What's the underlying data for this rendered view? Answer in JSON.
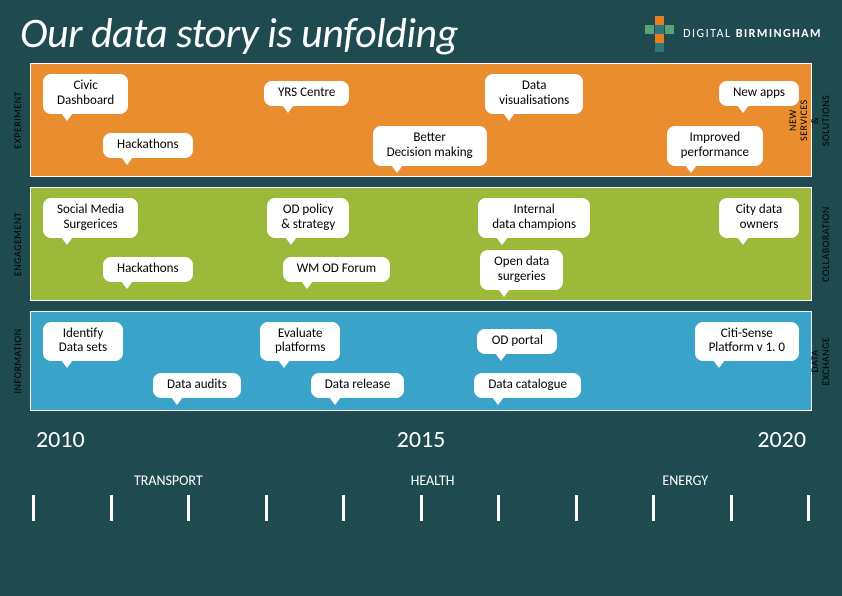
{
  "header": {
    "title": "Our data story is unfolding",
    "logo": {
      "text_light": "DIGITAL",
      "text_bold": "BIRMINGHAM",
      "square_colors": [
        "#e87d1e",
        "#5aa37a",
        "#2b7a78",
        "#5aa37a",
        "#e87d1e",
        "#2b7a78"
      ]
    }
  },
  "bands": [
    {
      "id": "experiment",
      "bg": "#e98d2e",
      "text_color": "#000",
      "left_label": "EXPERIMENT",
      "right_label": "NEW SERVICES & SOLUTIONS",
      "rows": [
        {
          "offset": 0,
          "items": [
            {
              "label": "Civic\nDashboard"
            },
            {
              "label": "YRS Centre"
            },
            {
              "label": "Data\nvisualisations"
            },
            {
              "label": "New apps"
            }
          ]
        },
        {
          "offset": 1,
          "items": [
            {
              "label": "Hackathons"
            },
            {
              "label": "Better\nDecision making"
            },
            {
              "label": "Improved\nperformance"
            }
          ]
        }
      ]
    },
    {
      "id": "engagement",
      "bg": "#9cb93a",
      "text_color": "#000",
      "left_label": "ENGAGEMENT",
      "right_label": "COLLABORATION",
      "rows": [
        {
          "offset": 0,
          "items": [
            {
              "label": "Social Media\nSurgerices"
            },
            {
              "label": "OD policy\n& strategy"
            },
            {
              "label": "Internal\ndata champions"
            },
            {
              "label": "City data\nowners"
            }
          ]
        },
        {
          "offset": 1,
          "items": [
            {
              "label": "Hackathons"
            },
            {
              "label": "WM OD Forum"
            },
            {
              "label": "Open data\nsurgeries"
            }
          ]
        }
      ]
    },
    {
      "id": "information",
      "bg": "#3aa3c9",
      "text_color": "#000",
      "left_label": "INFORMATION",
      "right_label": "DATA EXCHANGE",
      "rows": [
        {
          "offset": 0,
          "items": [
            {
              "label": "Identify\nData sets"
            },
            {
              "label": "Evaluate\nplatforms"
            },
            {
              "label": "OD portal"
            },
            {
              "label": "Citi-Sense\nPlatform v 1. 0"
            }
          ]
        },
        {
          "offset": 2,
          "items": [
            {
              "label": "Data audits"
            },
            {
              "label": "Data release"
            },
            {
              "label": "Data catalogue"
            }
          ]
        }
      ]
    }
  ],
  "timeline": {
    "years": [
      "2010",
      "2015",
      "2020"
    ],
    "categories": [
      "TRANSPORT",
      "HEALTH",
      "ENERGY"
    ],
    "tick_count": 11
  },
  "styling": {
    "page_bg": "#1f4a4f",
    "title_color": "#ffffff",
    "title_fontsize": 42,
    "bubble_bg": "#ffffff",
    "bubble_fontsize": 13,
    "band_border": "#ffffff",
    "year_fontsize": 24,
    "tick_color": "#ffffff"
  }
}
